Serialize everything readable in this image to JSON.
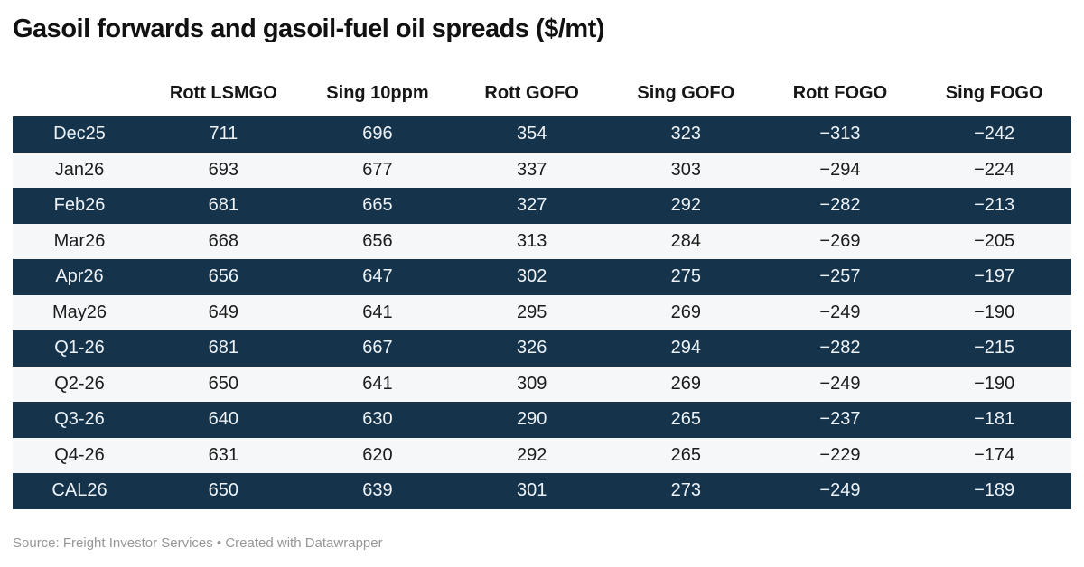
{
  "title": "Gasoil forwards and gasoil-fuel oil spreads ($/mt)",
  "footer": {
    "text": "Source: Freight Investor Services • Created with Datawrapper"
  },
  "colors": {
    "row_dark_bg": "#15334B",
    "row_dark_text": "#EDF2F6",
    "row_light_bg": "#F5F7F8",
    "row_light_text": "#1C1C1C",
    "footer_text": "#979797"
  },
  "chart_data": {
    "type": "table",
    "title": "Gasoil forwards and gasoil-fuel oil spreads ($/mt)",
    "units": "$/mt",
    "columns": [
      "",
      "Rott LSMGO",
      "Sing 10ppm",
      "Rott GOFO",
      "Sing GOFO",
      "Rott FOGO",
      "Sing FOGO"
    ],
    "rows": [
      {
        "label": "Dec25",
        "values": [
          "711",
          "696",
          "354",
          "323",
          "−313",
          "−242"
        ]
      },
      {
        "label": "Jan26",
        "values": [
          "693",
          "677",
          "337",
          "303",
          "−294",
          "−224"
        ]
      },
      {
        "label": "Feb26",
        "values": [
          "681",
          "665",
          "327",
          "292",
          "−282",
          "−213"
        ]
      },
      {
        "label": "Mar26",
        "values": [
          "668",
          "656",
          "313",
          "284",
          "−269",
          "−205"
        ]
      },
      {
        "label": "Apr26",
        "values": [
          "656",
          "647",
          "302",
          "275",
          "−257",
          "−197"
        ]
      },
      {
        "label": "May26",
        "values": [
          "649",
          "641",
          "295",
          "269",
          "−249",
          "−190"
        ]
      },
      {
        "label": "Q1-26",
        "values": [
          "681",
          "667",
          "326",
          "294",
          "−282",
          "−215"
        ]
      },
      {
        "label": "Q2-26",
        "values": [
          "650",
          "641",
          "309",
          "269",
          "−249",
          "−190"
        ]
      },
      {
        "label": "Q3-26",
        "values": [
          "640",
          "630",
          "290",
          "265",
          "−237",
          "−181"
        ]
      },
      {
        "label": "Q4-26",
        "values": [
          "631",
          "620",
          "292",
          "265",
          "−229",
          "−174"
        ]
      },
      {
        "label": "CAL26",
        "values": [
          "650",
          "639",
          "301",
          "273",
          "−249",
          "−189"
        ]
      }
    ],
    "layout": {
      "row_striping": "alternating dark/light starting dark",
      "alignment": "all columns centered",
      "grid": false,
      "legend": "none"
    }
  }
}
